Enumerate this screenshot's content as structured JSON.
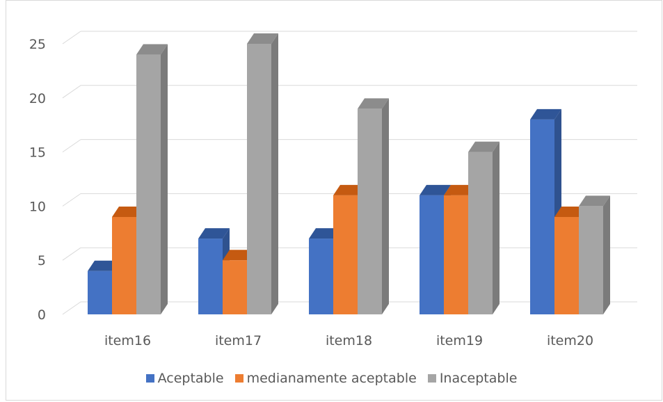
{
  "chart_data": {
    "type": "bar",
    "categories": [
      "item16",
      "item17",
      "item18",
      "item19",
      "item20"
    ],
    "series": [
      {
        "name": "Aceptable",
        "values": [
          4,
          7,
          7,
          11,
          18
        ],
        "color": "#4472c4",
        "side": "#2f528f",
        "top": "#2f5597"
      },
      {
        "name": "medianamente aceptable",
        "values": [
          9,
          5,
          11,
          11,
          9
        ],
        "color": "#ed7d31",
        "side": "#ae5a21",
        "top": "#c55a11"
      },
      {
        "name": "Inaceptable",
        "values": [
          24,
          25,
          19,
          15,
          10
        ],
        "color": "#a5a5a5",
        "side": "#7b7b7b",
        "top": "#8c8c8c"
      }
    ],
    "yticks": [
      0,
      5,
      10,
      15,
      20,
      25
    ],
    "ylim": [
      0,
      25
    ],
    "grid": true,
    "legend_position": "bottom"
  }
}
